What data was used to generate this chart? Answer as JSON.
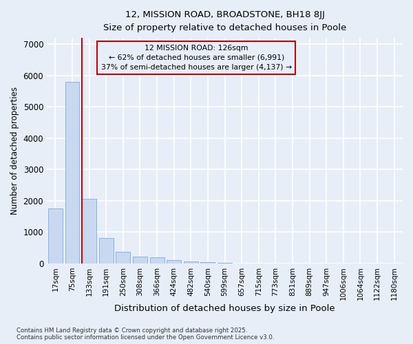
{
  "title_line1": "12, MISSION ROAD, BROADSTONE, BH18 8JJ",
  "title_line2": "Size of property relative to detached houses in Poole",
  "xlabel": "Distribution of detached houses by size in Poole",
  "ylabel": "Number of detached properties",
  "categories": [
    "17sqm",
    "75sqm",
    "133sqm",
    "191sqm",
    "250sqm",
    "308sqm",
    "366sqm",
    "424sqm",
    "482sqm",
    "540sqm",
    "599sqm",
    "657sqm",
    "715sqm",
    "773sqm",
    "831sqm",
    "889sqm",
    "947sqm",
    "1006sqm",
    "1064sqm",
    "1122sqm",
    "1180sqm"
  ],
  "values": [
    1760,
    5800,
    2060,
    820,
    360,
    210,
    190,
    100,
    65,
    30,
    8,
    4,
    3,
    1,
    1,
    0,
    0,
    0,
    0,
    0,
    0
  ],
  "bar_color": "#c8d8f0",
  "bar_edge_color": "#7aaed6",
  "vline_x": 2,
  "vline_color": "#cc0000",
  "annotation_title": "12 MISSION ROAD: 126sqm",
  "annotation_line1": "← 62% of detached houses are smaller (6,991)",
  "annotation_line2": "37% of semi-detached houses are larger (4,137) →",
  "annotation_box_color": "#cc0000",
  "background_color": "#e8eef8",
  "grid_color": "#ffffff",
  "footer": "Contains HM Land Registry data © Crown copyright and database right 2025.\nContains public sector information licensed under the Open Government Licence v3.0.",
  "ylim": [
    0,
    7200
  ],
  "yticks": [
    0,
    1000,
    2000,
    3000,
    4000,
    5000,
    6000,
    7000
  ]
}
